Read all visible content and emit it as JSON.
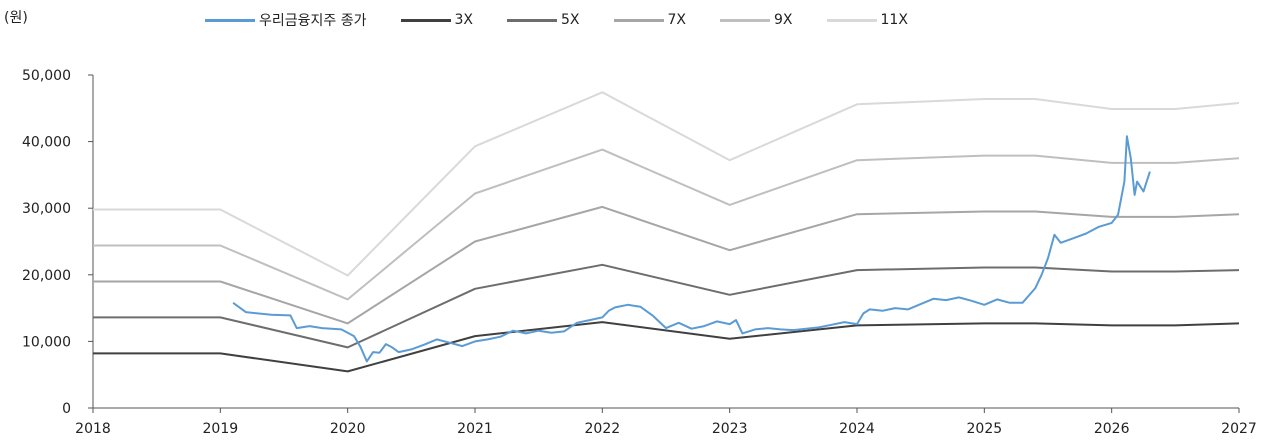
{
  "chart_data": {
    "type": "line",
    "unit_label": "(원)",
    "ylim": [
      0,
      50000
    ],
    "xlim": [
      2018,
      2027
    ],
    "y_ticks": [
      "0",
      "10,000",
      "20,000",
      "30,000",
      "40,000",
      "50,000"
    ],
    "x_ticks": [
      "2018",
      "2019",
      "2020",
      "2021",
      "2022",
      "2023",
      "2024",
      "2025",
      "2026",
      "2027"
    ],
    "grid": false,
    "legend_position": "top",
    "series": [
      {
        "name": "우리금융지주 종가",
        "color": "#5b9bd5",
        "width": 2,
        "x": [
          2019.1,
          2019.2,
          2019.4,
          2019.55,
          2019.6,
          2019.7,
          2019.8,
          2019.95,
          2020.05,
          2020.1,
          2020.15,
          2020.2,
          2020.25,
          2020.3,
          2020.35,
          2020.4,
          2020.5,
          2020.6,
          2020.7,
          2020.8,
          2020.9,
          2021.0,
          2021.1,
          2021.2,
          2021.3,
          2021.4,
          2021.5,
          2021.6,
          2021.7,
          2021.8,
          2021.9,
          2022.0,
          2022.05,
          2022.1,
          2022.2,
          2022.3,
          2022.4,
          2022.5,
          2022.6,
          2022.7,
          2022.8,
          2022.9,
          2023.0,
          2023.05,
          2023.1,
          2023.2,
          2023.3,
          2023.4,
          2023.5,
          2023.6,
          2023.7,
          2023.8,
          2023.9,
          2024.0,
          2024.05,
          2024.1,
          2024.2,
          2024.3,
          2024.4,
          2024.5,
          2024.6,
          2024.7,
          2024.8,
          2024.9,
          2025.0,
          2025.1,
          2025.2,
          2025.3,
          2025.4,
          2025.45,
          2025.5,
          2025.55,
          2025.6,
          2025.7,
          2025.8,
          2025.9,
          2026.0,
          2026.05,
          2026.1,
          2026.12,
          2026.15,
          2026.18,
          2026.2,
          2026.25,
          2026.3
        ],
        "y": [
          15800,
          14400,
          14000,
          13900,
          12000,
          12300,
          12000,
          11800,
          10800,
          9200,
          7000,
          8400,
          8300,
          9600,
          9100,
          8400,
          8800,
          9500,
          10300,
          9800,
          9300,
          10000,
          10300,
          10700,
          11600,
          11200,
          11600,
          11300,
          11500,
          12800,
          13200,
          13600,
          14600,
          15100,
          15500,
          15200,
          13800,
          12000,
          12800,
          11900,
          12300,
          13000,
          12600,
          13200,
          11200,
          11800,
          12000,
          11800,
          11700,
          11900,
          12100,
          12500,
          12900,
          12600,
          14200,
          14800,
          14600,
          15000,
          14800,
          15600,
          16400,
          16200,
          16600,
          16100,
          15500,
          16300,
          15800,
          15800,
          18000,
          20000,
          22500,
          26000,
          24800,
          25500,
          26200,
          27200,
          27800,
          29000,
          34000,
          40800,
          37500,
          32000,
          34000,
          32500,
          35500
        ]
      },
      {
        "name": "3X",
        "color": "#404040",
        "width": 2,
        "x": [
          2018,
          2019,
          2020,
          2021,
          2022,
          2023,
          2024,
          2025,
          2025.4,
          2026,
          2026.5,
          2027
        ],
        "y": [
          8200,
          8200,
          5500,
          10800,
          12900,
          10400,
          12400,
          12700,
          12700,
          12400,
          12400,
          12700
        ]
      },
      {
        "name": "5X",
        "color": "#6d6d6d",
        "width": 2,
        "x": [
          2018,
          2019,
          2020,
          2021,
          2022,
          2023,
          2024,
          2025,
          2025.4,
          2026,
          2026.5,
          2027
        ],
        "y": [
          13600,
          13600,
          9100,
          17900,
          21500,
          17000,
          20700,
          21100,
          21100,
          20500,
          20500,
          20700
        ]
      },
      {
        "name": "7X",
        "color": "#a6a6a6",
        "width": 2,
        "x": [
          2018,
          2019,
          2020,
          2021,
          2022,
          2023,
          2024,
          2025,
          2025.4,
          2026,
          2026.5,
          2027
        ],
        "y": [
          19000,
          19000,
          12700,
          25000,
          30200,
          23700,
          29100,
          29500,
          29500,
          28700,
          28700,
          29100
        ]
      },
      {
        "name": "9X",
        "color": "#bfbfbf",
        "width": 2,
        "x": [
          2018,
          2019,
          2020,
          2021,
          2022,
          2023,
          2024,
          2025,
          2025.4,
          2026,
          2026.5,
          2027
        ],
        "y": [
          24400,
          24400,
          16300,
          32200,
          38800,
          30500,
          37200,
          37900,
          37900,
          36800,
          36800,
          37500
        ]
      },
      {
        "name": "11X",
        "color": "#d9d9d9",
        "width": 2,
        "x": [
          2018,
          2019,
          2020,
          2021,
          2022,
          2023,
          2024,
          2025,
          2025.4,
          2026,
          2026.5,
          2027
        ],
        "y": [
          29800,
          29800,
          19900,
          39300,
          47400,
          37200,
          45600,
          46400,
          46400,
          44900,
          44900,
          45800
        ]
      }
    ]
  }
}
